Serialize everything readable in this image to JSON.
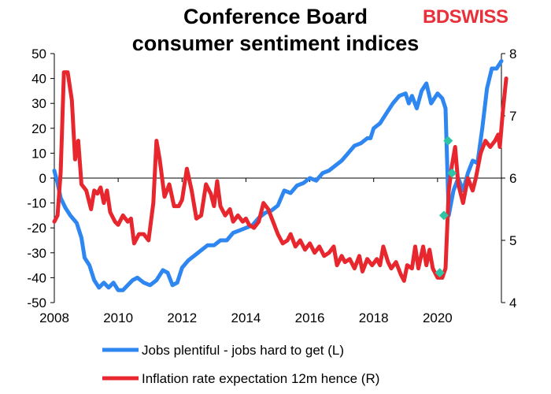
{
  "brand": {
    "part1": "BD",
    "part2": "SWISS",
    "accent": "#e8313b"
  },
  "chart_data": {
    "type": "line",
    "title": "Conference Board consumer sentiment indices",
    "title_lines": [
      "Conference Board",
      "consumer sentiment indices"
    ],
    "x_ticks": [
      "2008",
      "2010",
      "2012",
      "2014",
      "2016",
      "2018",
      "2020"
    ],
    "xlim": [
      2008,
      2022
    ],
    "y_left": {
      "lim": [
        -50,
        50
      ],
      "ticks": [
        "50",
        "40",
        "30",
        "20",
        "10",
        "0",
        "-10",
        "-20",
        "-30",
        "-40",
        "-50"
      ]
    },
    "y_right": {
      "lim": [
        4,
        8
      ],
      "ticks": [
        "8",
        "7",
        "6",
        "5",
        "4"
      ]
    },
    "grid": false,
    "zero_line": true,
    "legend_position": "bottom",
    "series": [
      {
        "name": "Jobs plentiful - jobs hard to get (L)",
        "axis": "left",
        "color": "#2e86f0",
        "points": [
          [
            2008.0,
            3
          ],
          [
            2008.1,
            -2
          ],
          [
            2008.2,
            -8
          ],
          [
            2008.35,
            -12
          ],
          [
            2008.5,
            -15
          ],
          [
            2008.7,
            -18
          ],
          [
            2008.85,
            -24
          ],
          [
            2008.95,
            -32
          ],
          [
            2009.1,
            -35
          ],
          [
            2009.25,
            -41
          ],
          [
            2009.4,
            -44
          ],
          [
            2009.55,
            -42
          ],
          [
            2009.7,
            -44
          ],
          [
            2009.85,
            -42
          ],
          [
            2010.0,
            -45
          ],
          [
            2010.15,
            -45
          ],
          [
            2010.3,
            -43
          ],
          [
            2010.45,
            -41
          ],
          [
            2010.6,
            -40
          ],
          [
            2010.8,
            -42
          ],
          [
            2011.0,
            -43
          ],
          [
            2011.2,
            -41
          ],
          [
            2011.4,
            -37
          ],
          [
            2011.55,
            -38
          ],
          [
            2011.7,
            -43
          ],
          [
            2011.85,
            -42
          ],
          [
            2012.0,
            -36
          ],
          [
            2012.2,
            -33
          ],
          [
            2012.4,
            -31
          ],
          [
            2012.6,
            -29
          ],
          [
            2012.8,
            -27
          ],
          [
            2013.0,
            -27
          ],
          [
            2013.2,
            -25
          ],
          [
            2013.4,
            -25
          ],
          [
            2013.6,
            -22
          ],
          [
            2013.8,
            -21
          ],
          [
            2014.0,
            -20
          ],
          [
            2014.2,
            -19
          ],
          [
            2014.4,
            -16
          ],
          [
            2014.6,
            -14
          ],
          [
            2014.8,
            -13
          ],
          [
            2015.0,
            -11
          ],
          [
            2015.2,
            -5
          ],
          [
            2015.4,
            -6
          ],
          [
            2015.6,
            -3
          ],
          [
            2015.8,
            -2
          ],
          [
            2016.0,
            0
          ],
          [
            2016.2,
            -1
          ],
          [
            2016.4,
            2
          ],
          [
            2016.6,
            3
          ],
          [
            2016.8,
            5
          ],
          [
            2017.0,
            7
          ],
          [
            2017.2,
            10
          ],
          [
            2017.4,
            13
          ],
          [
            2017.6,
            14
          ],
          [
            2017.8,
            16
          ],
          [
            2017.9,
            16
          ],
          [
            2018.0,
            20
          ],
          [
            2018.2,
            22
          ],
          [
            2018.4,
            26
          ],
          [
            2018.6,
            30
          ],
          [
            2018.8,
            33
          ],
          [
            2019.0,
            34
          ],
          [
            2019.1,
            30
          ],
          [
            2019.2,
            33
          ],
          [
            2019.35,
            28
          ],
          [
            2019.5,
            35
          ],
          [
            2019.65,
            38
          ],
          [
            2019.8,
            30
          ],
          [
            2020.0,
            34
          ],
          [
            2020.15,
            32
          ],
          [
            2020.25,
            28
          ],
          [
            2020.35,
            -15
          ],
          [
            2020.5,
            -5
          ],
          [
            2020.65,
            0
          ],
          [
            2020.8,
            -5
          ],
          [
            2020.95,
            2
          ],
          [
            2021.1,
            7
          ],
          [
            2021.25,
            6
          ],
          [
            2021.4,
            20
          ],
          [
            2021.55,
            36
          ],
          [
            2021.7,
            44
          ],
          [
            2021.85,
            44
          ],
          [
            2022.0,
            47
          ]
        ]
      },
      {
        "name": "Inflation rate expectation 12m hence (R)",
        "axis": "right",
        "color": "#e8262e",
        "points": [
          [
            2008.0,
            5.3
          ],
          [
            2008.1,
            5.4
          ],
          [
            2008.2,
            6.1
          ],
          [
            2008.3,
            7.7
          ],
          [
            2008.42,
            7.7
          ],
          [
            2008.55,
            7.25
          ],
          [
            2008.65,
            6.3
          ],
          [
            2008.75,
            6.6
          ],
          [
            2008.85,
            5.9
          ],
          [
            2009.0,
            5.8
          ],
          [
            2009.15,
            5.5
          ],
          [
            2009.25,
            5.8
          ],
          [
            2009.35,
            5.75
          ],
          [
            2009.45,
            5.85
          ],
          [
            2009.55,
            5.6
          ],
          [
            2009.65,
            5.8
          ],
          [
            2009.75,
            5.45
          ],
          [
            2009.9,
            5.3
          ],
          [
            2010.0,
            5.25
          ],
          [
            2010.15,
            5.4
          ],
          [
            2010.3,
            5.3
          ],
          [
            2010.4,
            5.35
          ],
          [
            2010.5,
            4.95
          ],
          [
            2010.65,
            5.1
          ],
          [
            2010.8,
            5.1
          ],
          [
            2010.95,
            5.0
          ],
          [
            2011.1,
            5.6
          ],
          [
            2011.2,
            6.6
          ],
          [
            2011.3,
            6.3
          ],
          [
            2011.45,
            5.7
          ],
          [
            2011.6,
            5.9
          ],
          [
            2011.75,
            5.55
          ],
          [
            2011.9,
            5.55
          ],
          [
            2012.0,
            5.65
          ],
          [
            2012.15,
            6.15
          ],
          [
            2012.3,
            5.8
          ],
          [
            2012.45,
            5.35
          ],
          [
            2012.6,
            5.4
          ],
          [
            2012.75,
            5.9
          ],
          [
            2012.9,
            5.75
          ],
          [
            2013.0,
            5.55
          ],
          [
            2013.1,
            5.95
          ],
          [
            2013.2,
            5.55
          ],
          [
            2013.35,
            5.4
          ],
          [
            2013.5,
            5.5
          ],
          [
            2013.6,
            5.3
          ],
          [
            2013.75,
            5.4
          ],
          [
            2013.9,
            5.3
          ],
          [
            2014.0,
            5.35
          ],
          [
            2014.1,
            5.25
          ],
          [
            2014.25,
            5.2
          ],
          [
            2014.4,
            5.3
          ],
          [
            2014.55,
            5.6
          ],
          [
            2014.7,
            5.5
          ],
          [
            2014.85,
            5.3
          ],
          [
            2015.0,
            5.1
          ],
          [
            2015.15,
            4.95
          ],
          [
            2015.3,
            5.0
          ],
          [
            2015.4,
            5.1
          ],
          [
            2015.55,
            4.9
          ],
          [
            2015.7,
            5.0
          ],
          [
            2015.85,
            4.85
          ],
          [
            2016.0,
            4.95
          ],
          [
            2016.15,
            4.8
          ],
          [
            2016.3,
            4.9
          ],
          [
            2016.45,
            4.75
          ],
          [
            2016.6,
            4.8
          ],
          [
            2016.75,
            4.9
          ],
          [
            2016.85,
            4.6
          ],
          [
            2017.0,
            4.75
          ],
          [
            2017.1,
            4.65
          ],
          [
            2017.25,
            4.7
          ],
          [
            2017.4,
            4.55
          ],
          [
            2017.55,
            4.75
          ],
          [
            2017.65,
            4.5
          ],
          [
            2017.8,
            4.7
          ],
          [
            2017.95,
            4.6
          ],
          [
            2018.1,
            4.7
          ],
          [
            2018.2,
            4.6
          ],
          [
            2018.3,
            4.9
          ],
          [
            2018.45,
            4.65
          ],
          [
            2018.55,
            4.55
          ],
          [
            2018.7,
            4.65
          ],
          [
            2018.85,
            4.45
          ],
          [
            2018.95,
            4.35
          ],
          [
            2019.05,
            4.6
          ],
          [
            2019.2,
            4.55
          ],
          [
            2019.3,
            4.9
          ],
          [
            2019.4,
            4.55
          ],
          [
            2019.55,
            4.9
          ],
          [
            2019.65,
            4.6
          ],
          [
            2019.75,
            4.85
          ],
          [
            2019.85,
            4.55
          ],
          [
            2020.0,
            4.4
          ],
          [
            2020.15,
            4.4
          ],
          [
            2020.25,
            4.55
          ],
          [
            2020.35,
            5.8
          ],
          [
            2020.45,
            6.2
          ],
          [
            2020.55,
            6.5
          ],
          [
            2020.65,
            5.9
          ],
          [
            2020.8,
            5.6
          ],
          [
            2020.95,
            6.0
          ],
          [
            2021.1,
            5.8
          ],
          [
            2021.2,
            6.0
          ],
          [
            2021.35,
            6.4
          ],
          [
            2021.5,
            6.6
          ],
          [
            2021.65,
            6.5
          ],
          [
            2021.8,
            6.6
          ],
          [
            2021.9,
            6.7
          ],
          [
            2021.95,
            6.5
          ],
          [
            2022.05,
            7.1
          ],
          [
            2022.15,
            7.6
          ]
        ]
      }
    ],
    "markers": {
      "color": "#2ec4a4",
      "points": [
        {
          "x": 2020.07,
          "left": -38
        },
        {
          "x": 2020.2,
          "left": -15
        },
        {
          "x": 2020.33,
          "left": 15
        },
        {
          "x": 2020.45,
          "left": 2
        }
      ]
    }
  }
}
